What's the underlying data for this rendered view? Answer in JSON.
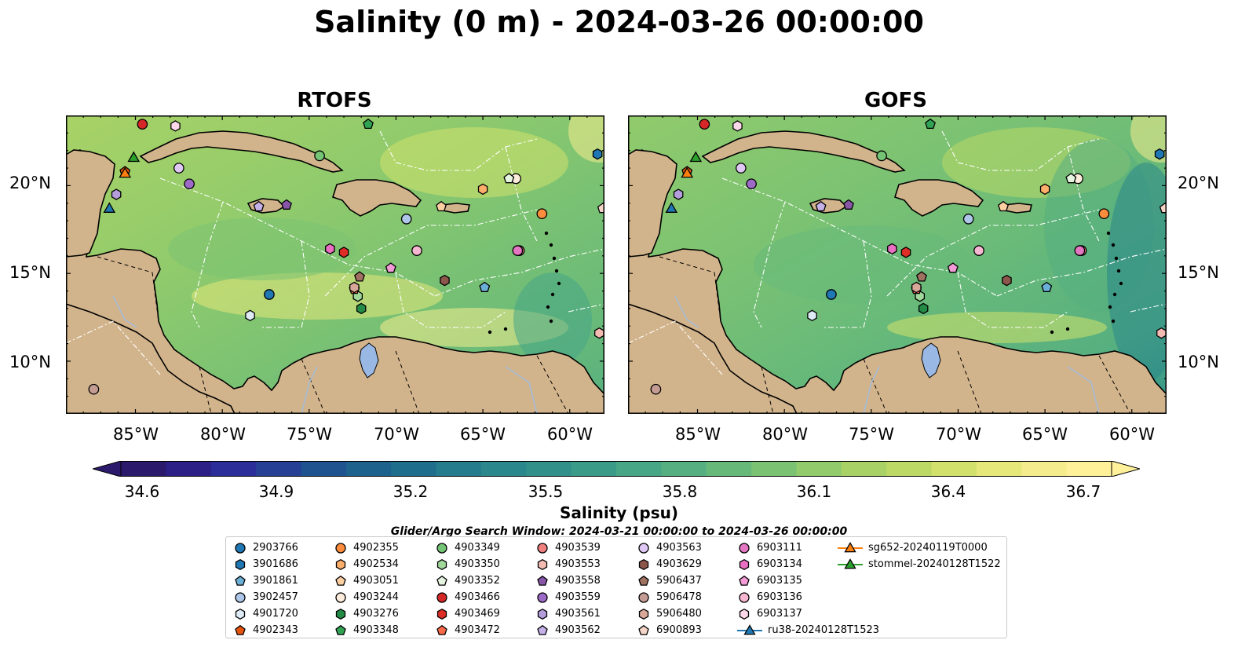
{
  "title": "Salinity (0 m) - 2024-03-26 00:00:00",
  "panels": [
    {
      "title": "RTOFS"
    },
    {
      "title": "GOFS"
    }
  ],
  "lat_labels": [
    "20°N",
    "15°N",
    "10°N"
  ],
  "lon_labels": [
    "85°W",
    "80°W",
    "75°W",
    "70°W",
    "65°W",
    "60°W"
  ],
  "colorbar": {
    "label": "Salinity (psu)",
    "ticks": [
      "34.6",
      "34.9",
      "35.2",
      "35.5",
      "35.8",
      "36.1",
      "36.4",
      "36.7"
    ],
    "min": 34.6,
    "max": 36.7,
    "extend": "both",
    "colors": [
      "#2b1a6b",
      "#2c1f86",
      "#2b2e98",
      "#264095",
      "#1f538f",
      "#1d628d",
      "#1f6f8c",
      "#247c8c",
      "#2a878b",
      "#31918a",
      "#3a9b89",
      "#47a686",
      "#56af80",
      "#67b97a",
      "#7bc273",
      "#91cb6c",
      "#a8d266",
      "#bcd966",
      "#d2e16b",
      "#e6e87a",
      "#f5ec8e",
      "#fff09a"
    ]
  },
  "search_window": "Glider/Argo Search Window: 2024-03-21 00:00:00 to 2024-03-26 00:00:00",
  "map_extent": {
    "lon": [
      -89,
      -58
    ],
    "lat": [
      7,
      24
    ]
  },
  "land_color": "#d2b48c",
  "legend": [
    {
      "label": "2903766",
      "marker": "circle",
      "color": "#1f77b4"
    },
    {
      "label": "3901686",
      "marker": "hexagon",
      "color": "#1f77b4"
    },
    {
      "label": "3901861",
      "marker": "pentagon",
      "color": "#6baed6"
    },
    {
      "label": "3902457",
      "marker": "circle",
      "color": "#aec7e8"
    },
    {
      "label": "4901720",
      "marker": "hexagon",
      "color": "#deebf7"
    },
    {
      "label": "4902343",
      "marker": "pentagon",
      "color": "#e6550d"
    },
    {
      "label": "4902355",
      "marker": "circle",
      "color": "#fd8d3c"
    },
    {
      "label": "4902534",
      "marker": "hexagon",
      "color": "#fdae6b"
    },
    {
      "label": "4903051",
      "marker": "pentagon",
      "color": "#fdd0a2"
    },
    {
      "label": "4903244",
      "marker": "circle",
      "color": "#feeddc"
    },
    {
      "label": "4903276",
      "marker": "hexagon",
      "color": "#238b45"
    },
    {
      "label": "4903348",
      "marker": "pentagon",
      "color": "#31a354"
    },
    {
      "label": "4903349",
      "marker": "circle",
      "color": "#74c476"
    },
    {
      "label": "4903350",
      "marker": "hexagon",
      "color": "#a1d99b"
    },
    {
      "label": "4903352",
      "marker": "pentagon",
      "color": "#e5f5e0"
    },
    {
      "label": "4903466",
      "marker": "circle",
      "color": "#d62728"
    },
    {
      "label": "4903469",
      "marker": "hexagon",
      "color": "#de2d26"
    },
    {
      "label": "4903472",
      "marker": "pentagon",
      "color": "#fb6a4a"
    },
    {
      "label": "4903539",
      "marker": "circle",
      "color": "#f08080"
    },
    {
      "label": "4903553",
      "marker": "hexagon",
      "color": "#f4bbb3"
    },
    {
      "label": "4903558",
      "marker": "pentagon",
      "color": "#8856a7"
    },
    {
      "label": "4903559",
      "marker": "circle",
      "color": "#9e6ac8"
    },
    {
      "label": "4903561",
      "marker": "hexagon",
      "color": "#b39ddb"
    },
    {
      "label": "4903562",
      "marker": "pentagon",
      "color": "#c5b0e8"
    },
    {
      "label": "4903563",
      "marker": "circle",
      "color": "#e0c8f5"
    },
    {
      "label": "4903629",
      "marker": "hexagon",
      "color": "#8c564b"
    },
    {
      "label": "5906437",
      "marker": "pentagon",
      "color": "#a07060"
    },
    {
      "label": "5906478",
      "marker": "circle",
      "color": "#c49c94"
    },
    {
      "label": "5906480",
      "marker": "hexagon",
      "color": "#d9a898"
    },
    {
      "label": "6900893",
      "marker": "pentagon",
      "color": "#f5d5c8"
    },
    {
      "label": "6903111",
      "marker": "circle",
      "color": "#e377c2"
    },
    {
      "label": "6903134",
      "marker": "hexagon",
      "color": "#ea6fc2"
    },
    {
      "label": "6903135",
      "marker": "pentagon",
      "color": "#f29bd6"
    },
    {
      "label": "6903136",
      "marker": "circle",
      "color": "#f7b6d2"
    },
    {
      "label": "6903137",
      "marker": "hexagon",
      "color": "#fcd8ea"
    },
    {
      "label": "ru38-20240128T1523",
      "marker": "triangle-line",
      "color": "#1f77b4"
    },
    {
      "label": "sg652-20240119T0000",
      "marker": "triangle-line",
      "color": "#ff7f0e"
    },
    {
      "label": "stommel-20240128T1522",
      "marker": "triangle-line",
      "color": "#2ca02c"
    }
  ],
  "platform_positions": [
    {
      "id": "2903766",
      "lon": -77.3,
      "lat": 13.8
    },
    {
      "id": "3901686",
      "lon": -58.4,
      "lat": 21.8
    },
    {
      "id": "3901861",
      "lon": -64.9,
      "lat": 14.2
    },
    {
      "id": "3902457",
      "lon": -69.4,
      "lat": 18.1
    },
    {
      "id": "4901720",
      "lon": -78.4,
      "lat": 12.6
    },
    {
      "id": "4902343",
      "lon": -85.6,
      "lat": 20.8
    },
    {
      "id": "4902355",
      "lon": -61.6,
      "lat": 18.4
    },
    {
      "id": "4902534",
      "lon": -65.0,
      "lat": 19.8
    },
    {
      "id": "4903051",
      "lon": -67.4,
      "lat": 18.8
    },
    {
      "id": "4903244",
      "lon": -63.1,
      "lat": 20.4
    },
    {
      "id": "4903276",
      "lon": -72.0,
      "lat": 13.0
    },
    {
      "id": "4903348",
      "lon": -71.6,
      "lat": 23.5
    },
    {
      "id": "4903349",
      "lon": -74.4,
      "lat": 21.7
    },
    {
      "id": "4903350",
      "lon": -72.2,
      "lat": 13.7
    },
    {
      "id": "4903352",
      "lon": -63.5,
      "lat": 20.4
    },
    {
      "id": "4903466",
      "lon": -84.6,
      "lat": 23.5
    },
    {
      "id": "4903469",
      "lon": -73.0,
      "lat": 16.2
    },
    {
      "id": "4903472",
      "lon": -72.4,
      "lat": 14.1
    },
    {
      "id": "4903539",
      "lon": -62.9,
      "lat": 16.3
    },
    {
      "id": "4903553",
      "lon": -58.3,
      "lat": 11.6
    },
    {
      "id": "4903558",
      "lon": -76.3,
      "lat": 18.9
    },
    {
      "id": "4903559",
      "lon": -81.9,
      "lat": 20.1
    },
    {
      "id": "4903561",
      "lon": -86.1,
      "lat": 19.5
    },
    {
      "id": "4903562",
      "lon": -77.9,
      "lat": 18.8
    },
    {
      "id": "4903563",
      "lon": -82.5,
      "lat": 21.0
    },
    {
      "id": "4903629",
      "lon": -67.2,
      "lat": 14.6
    },
    {
      "id": "5906437",
      "lon": -72.1,
      "lat": 14.8
    },
    {
      "id": "5906478",
      "lon": -87.4,
      "lat": 8.4
    },
    {
      "id": "5906480",
      "lon": -72.4,
      "lat": 14.2
    },
    {
      "id": "6900893",
      "lon": -58.1,
      "lat": 18.7
    },
    {
      "id": "6903111",
      "lon": -63.0,
      "lat": 16.3
    },
    {
      "id": "6903134",
      "lon": -73.8,
      "lat": 16.4
    },
    {
      "id": "6903135",
      "lon": -70.3,
      "lat": 15.3
    },
    {
      "id": "6903136",
      "lon": -68.8,
      "lat": 16.3
    },
    {
      "id": "6903137",
      "lon": -82.7,
      "lat": 23.4
    },
    {
      "id": "ru38-20240128T1523",
      "lon": -86.5,
      "lat": 18.7
    },
    {
      "id": "sg652-20240119T0000",
      "lon": -85.6,
      "lat": 20.7
    },
    {
      "id": "stommel-20240128T1522",
      "lon": -85.1,
      "lat": 21.6
    }
  ]
}
